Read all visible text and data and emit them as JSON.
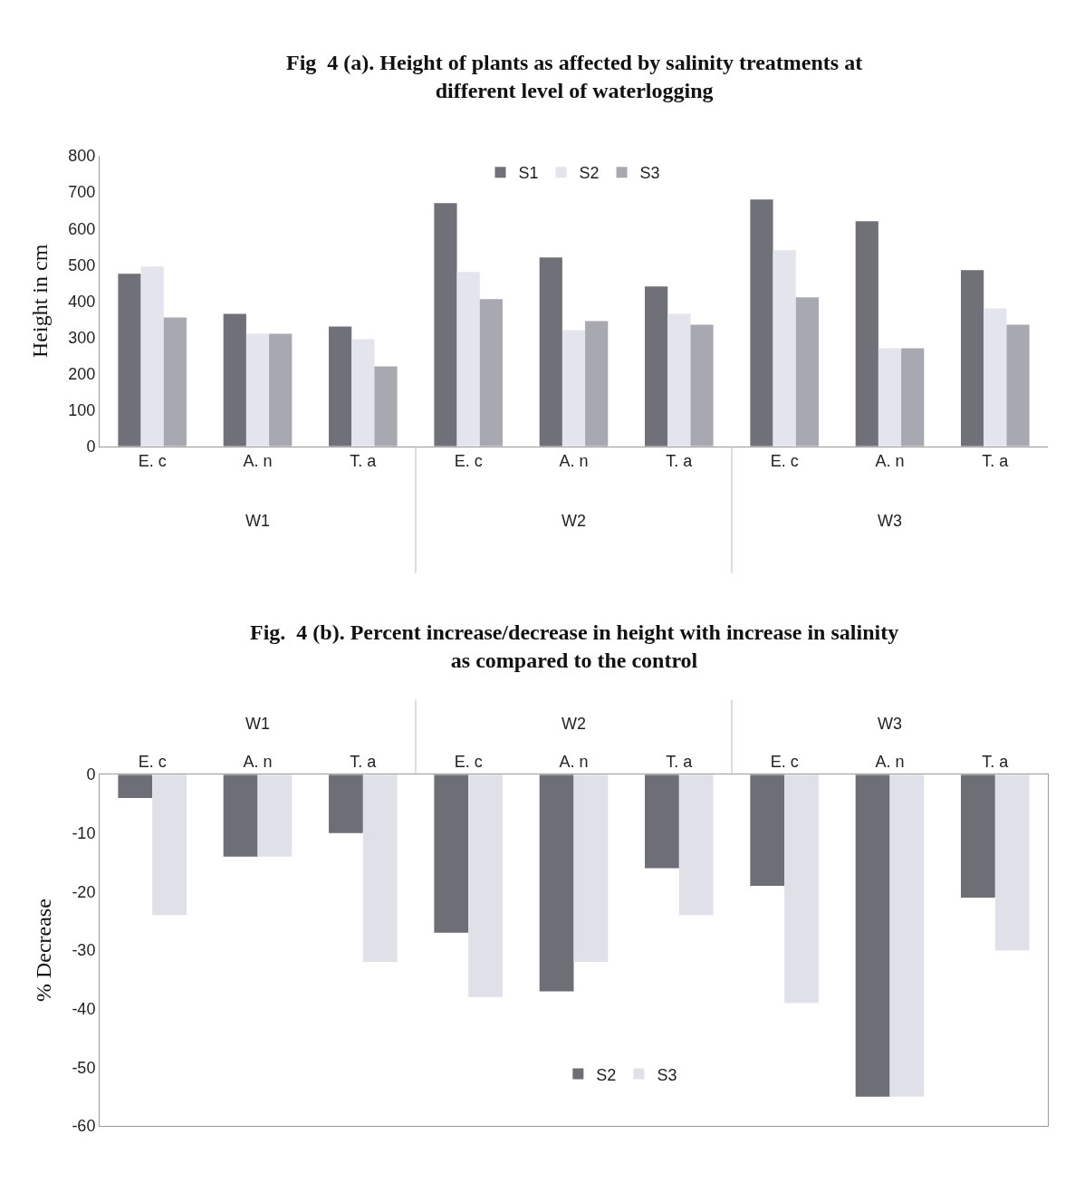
{
  "chart_data": [
    {
      "type": "bar",
      "title": "Fig  4 (a). Height of plants as affected by salinity treatments at\ndifferent level of waterlogging",
      "ylabel": "Height in cm",
      "categories": [
        "E. c",
        "A. n",
        "T. a",
        "E. c",
        "A. n",
        "T. a",
        "E. c",
        "A. n",
        "T. a"
      ],
      "annotations": [
        "W1",
        "W2",
        "W3"
      ],
      "series": [
        {
          "name": "S1",
          "color": "#707078",
          "values": [
            475,
            365,
            330,
            670,
            520,
            440,
            680,
            620,
            485
          ]
        },
        {
          "name": "S2",
          "color": "#e4e4ec",
          "values": [
            495,
            310,
            295,
            480,
            320,
            365,
            540,
            270,
            380
          ]
        },
        {
          "name": "S3",
          "color": "#a8a8b0",
          "values": [
            355,
            310,
            220,
            405,
            345,
            335,
            410,
            270,
            335
          ]
        }
      ],
      "ylim": [
        0,
        800
      ],
      "yticks": [
        0,
        100,
        200,
        300,
        400,
        500,
        600,
        700,
        800
      ],
      "legend": "top"
    },
    {
      "type": "bar",
      "title": "Fig.  4 (b). Percent increase/decrease in height with increase in salinity\nas compared to the control",
      "ylabel": "% Decrease",
      "categories": [
        "E. c",
        "A. n",
        "T. a",
        "E. c",
        "A. n",
        "T. a",
        "E. c",
        "A. n",
        "T. a"
      ],
      "annotations": [
        "W1",
        "W2",
        "W3"
      ],
      "series": [
        {
          "name": "S2",
          "color": "#6e6e76",
          "values": [
            -4,
            -14,
            -10,
            -27,
            -37,
            -16,
            -19,
            -55,
            -21
          ]
        },
        {
          "name": "S3",
          "color": "#e0e0e8",
          "values": [
            -24,
            -14,
            -32,
            -38,
            -32,
            -24,
            -39,
            -55,
            -30
          ]
        }
      ],
      "ylim": [
        -60,
        0
      ],
      "yticks": [
        0,
        -10,
        -20,
        -30,
        -40,
        -50,
        -60
      ],
      "legend": "bottom"
    }
  ]
}
